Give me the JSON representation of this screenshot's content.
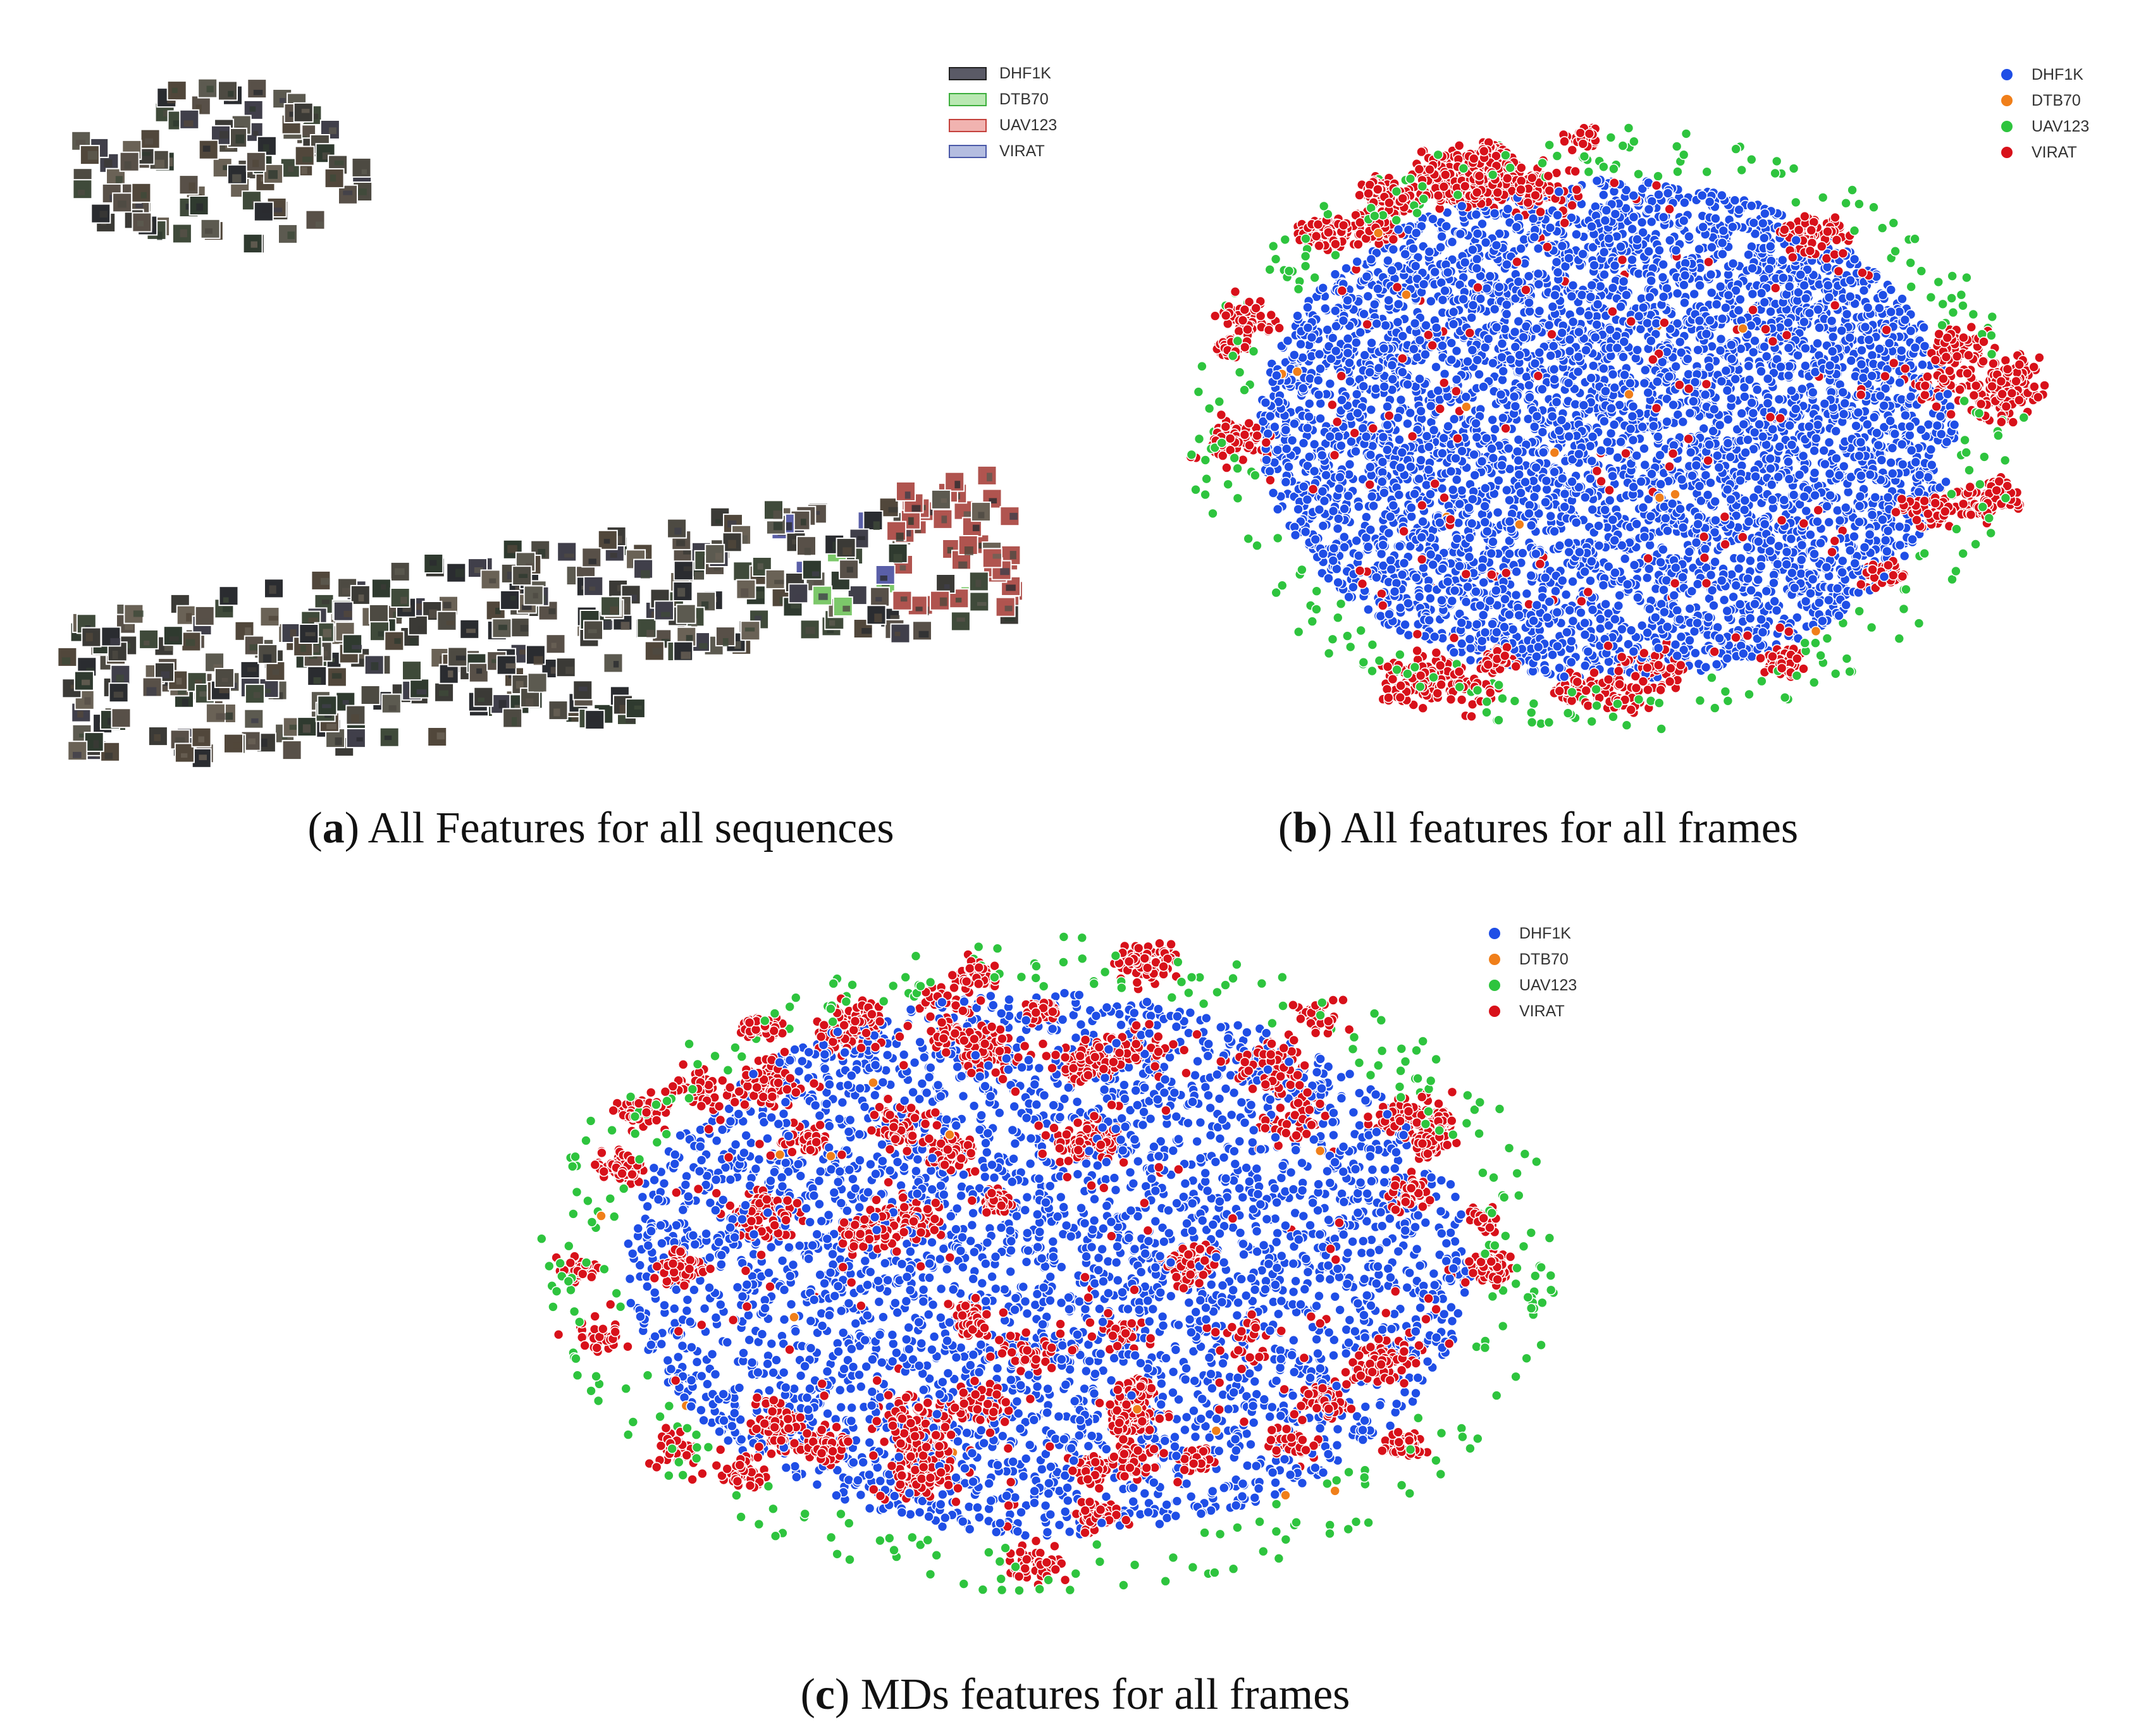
{
  "colors": {
    "DHF1K": "#1f4ee6",
    "DTB70": "#f07f1a",
    "UAV123": "#2ec43e",
    "VIRAT": "#d8111a",
    "thumb_DHF1K": "#4a4a55",
    "thumb_DTB70": "#7cc86a",
    "thumb_UAV123": "#b0544f",
    "thumb_VIRAT": "#5a5fa8"
  },
  "chart_data": [
    {
      "id": "a",
      "type": "scatter",
      "title": "",
      "xlabel": "",
      "ylabel": "",
      "grid": false,
      "legend_placement": "top-right",
      "marker": "image-thumbnails",
      "legend": [
        "DHF1K",
        "DTB70",
        "UAV123",
        "VIRAT"
      ],
      "caption": {
        "letter": "a",
        "text": "All Features for all sequences"
      },
      "series": [
        {
          "name": "DHF1K",
          "points": "t-SNE embedding of sequence thumbnails (two clusters: small upper-left group and large lower band)"
        },
        {
          "name": "DTB70",
          "points": "few thumbnails at right end of lower band"
        },
        {
          "name": "UAV123",
          "points": "small reddish group at right end of lower band"
        },
        {
          "name": "VIRAT",
          "points": "few bluish thumbnails at right end of lower band"
        }
      ]
    },
    {
      "id": "b",
      "type": "scatter",
      "title": "",
      "xlabel": "",
      "ylabel": "",
      "grid": false,
      "legend_placement": "top-right",
      "legend": [
        "DHF1K",
        "DTB70",
        "UAV123",
        "VIRAT"
      ],
      "caption": {
        "letter": "b",
        "text": "All features for all frames"
      },
      "series": [
        {
          "name": "DHF1K",
          "points": "dense elliptical core"
        },
        {
          "name": "DTB70",
          "points": "sparse"
        },
        {
          "name": "UAV123",
          "points": "sparse periphery"
        },
        {
          "name": "VIRAT",
          "points": "clusters around periphery"
        }
      ]
    },
    {
      "id": "c",
      "type": "scatter",
      "title": "",
      "xlabel": "",
      "ylabel": "",
      "grid": false,
      "legend_placement": "top-right",
      "legend": [
        "DHF1K",
        "DTB70",
        "UAV123",
        "VIRAT"
      ],
      "caption": {
        "letter": "c",
        "text": "MDs features for all frames"
      },
      "series": [
        {
          "name": "DHF1K",
          "points": "interleaved elliptical clusters"
        },
        {
          "name": "DTB70",
          "points": "sparse"
        },
        {
          "name": "UAV123",
          "points": "sparse periphery"
        },
        {
          "name": "VIRAT",
          "points": "many clusters mixed with DHF1K"
        }
      ]
    }
  ]
}
